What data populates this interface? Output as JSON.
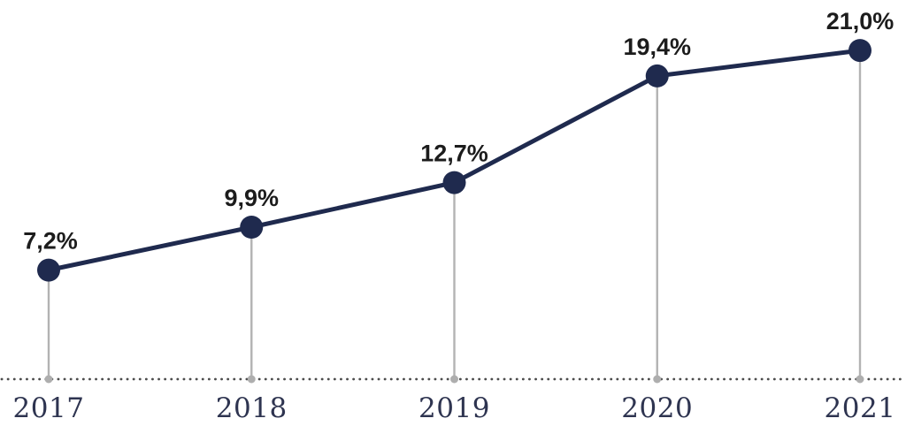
{
  "chart_data": {
    "type": "line",
    "title": "",
    "xlabel": "",
    "ylabel": "",
    "categories": [
      "2017",
      "2018",
      "2019",
      "2020",
      "2021"
    ],
    "values": [
      7.2,
      9.9,
      12.7,
      19.4,
      21.0
    ],
    "value_labels": [
      "7,2%",
      "9,9%",
      "12,7%",
      "19,4%",
      "21,0%"
    ],
    "unit": "%",
    "decimal_separator": ",",
    "ylim": [
      0,
      22
    ],
    "grid": false,
    "legend": "none",
    "marker": "filled-circle",
    "baseline": "dotted"
  },
  "colors": {
    "background": "#ffffff",
    "line": "#1f2a4e",
    "marker": "#1f2a4e",
    "value_label": "#1c1c1c",
    "axis_label": "#2e3450",
    "stem": "#b3b3b3",
    "stem_dot": "#aeaeae",
    "baseline_dots": "#4c4c4c"
  }
}
